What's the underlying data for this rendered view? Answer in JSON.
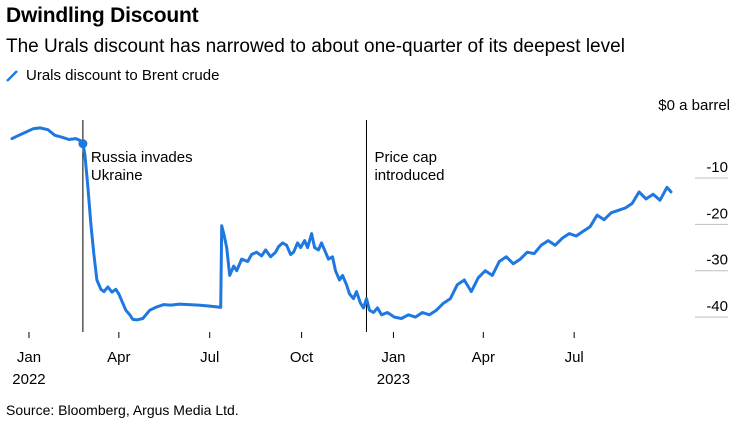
{
  "header": {
    "title": "Dwindling Discount",
    "subtitle": "The Urals discount has narrowed to about one-quarter of its deepest level"
  },
  "legend": {
    "label": "Urals discount to Brent crude",
    "icon": "line-icon"
  },
  "source": "Source: Bloomberg, Argus Media Ltd.",
  "colors": {
    "series": "#1f78e0",
    "axis": "#000000",
    "grid": "#bfbfbf"
  },
  "chart_data": {
    "type": "line",
    "title": "Dwindling Discount",
    "subtitle": "The Urals discount has narrowed to about one-quarter of its deepest level",
    "xlabel": "",
    "ylabel": "$0 a barrel",
    "ylim": [
      -44.5,
      2.5
    ],
    "xlim": [
      "2021-12-15",
      "2023-10-25"
    ],
    "yticks": [
      -10,
      -20,
      -30,
      -40
    ],
    "ytick_labels": [
      "-10",
      "-20",
      "-30",
      "-40"
    ],
    "y_axis_title": "$0 a barrel",
    "x_ticks": [
      {
        "date": "2022-01-01",
        "label": "Jan",
        "year": "2022"
      },
      {
        "date": "2022-04-01",
        "label": "Apr"
      },
      {
        "date": "2022-07-01",
        "label": "Jul"
      },
      {
        "date": "2022-10-01",
        "label": "Oct"
      },
      {
        "date": "2023-01-01",
        "label": "Jan",
        "year": "2023"
      },
      {
        "date": "2023-04-01",
        "label": "Apr"
      },
      {
        "date": "2023-07-01",
        "label": "Jul"
      }
    ],
    "annotations": [
      {
        "date": "2022-02-24",
        "text": [
          "Russia invades",
          "Ukraine"
        ],
        "marker_value": -2.6
      },
      {
        "date": "2022-12-05",
        "text": [
          "Price cap",
          "introduced"
        ]
      }
    ],
    "series": [
      {
        "name": "Urals discount to Brent crude",
        "x": [
          "2021-12-15",
          "2021-12-20",
          "2021-12-28",
          "2022-01-05",
          "2022-01-12",
          "2022-01-20",
          "2022-01-27",
          "2022-02-03",
          "2022-02-10",
          "2022-02-17",
          "2022-02-22",
          "2022-02-24",
          "2022-02-26",
          "2022-03-01",
          "2022-03-04",
          "2022-03-07",
          "2022-03-10",
          "2022-03-14",
          "2022-03-17",
          "2022-03-21",
          "2022-03-25",
          "2022-03-29",
          "2022-04-01",
          "2022-04-05",
          "2022-04-08",
          "2022-04-12",
          "2022-04-15",
          "2022-04-19",
          "2022-04-25",
          "2022-05-02",
          "2022-05-09",
          "2022-05-16",
          "2022-05-23",
          "2022-06-01",
          "2022-06-10",
          "2022-06-20",
          "2022-06-30",
          "2022-07-08",
          "2022-07-12",
          "2022-07-13",
          "2022-07-15",
          "2022-07-18",
          "2022-07-21",
          "2022-07-25",
          "2022-07-28",
          "2022-08-02",
          "2022-08-08",
          "2022-08-12",
          "2022-08-17",
          "2022-08-22",
          "2022-08-26",
          "2022-08-31",
          "2022-09-05",
          "2022-09-08",
          "2022-09-12",
          "2022-09-16",
          "2022-09-20",
          "2022-09-23",
          "2022-09-27",
          "2022-09-30",
          "2022-10-04",
          "2022-10-07",
          "2022-10-11",
          "2022-10-14",
          "2022-10-18",
          "2022-10-21",
          "2022-10-25",
          "2022-10-28",
          "2022-11-01",
          "2022-11-04",
          "2022-11-08",
          "2022-11-11",
          "2022-11-15",
          "2022-11-18",
          "2022-11-22",
          "2022-11-25",
          "2022-11-29",
          "2022-12-02",
          "2022-12-05",
          "2022-12-08",
          "2022-12-12",
          "2022-12-16",
          "2022-12-20",
          "2022-12-26",
          "2023-01-02",
          "2023-01-09",
          "2023-01-16",
          "2023-01-23",
          "2023-01-30",
          "2023-02-06",
          "2023-02-13",
          "2023-02-20",
          "2023-02-27",
          "2023-03-06",
          "2023-03-13",
          "2023-03-20",
          "2023-03-27",
          "2023-04-03",
          "2023-04-10",
          "2023-04-17",
          "2023-04-24",
          "2023-05-01",
          "2023-05-08",
          "2023-05-15",
          "2023-05-22",
          "2023-05-29",
          "2023-06-05",
          "2023-06-12",
          "2023-06-19",
          "2023-06-26",
          "2023-07-03",
          "2023-07-10",
          "2023-07-17",
          "2023-07-24",
          "2023-07-31",
          "2023-08-07",
          "2023-08-14",
          "2023-08-21",
          "2023-08-28",
          "2023-09-04",
          "2023-09-11",
          "2023-09-18",
          "2023-09-25",
          "2023-10-02",
          "2023-10-06"
        ],
        "values": [
          -1.5,
          -1.0,
          -0.2,
          0.6,
          0.8,
          0.4,
          -0.8,
          -1.2,
          -1.7,
          -1.5,
          -2.0,
          -2.6,
          -5.0,
          -12.0,
          -20.0,
          -26.5,
          -32.0,
          -34.0,
          -34.5,
          -33.5,
          -34.6,
          -34.0,
          -35.0,
          -37.0,
          -38.5,
          -39.5,
          -40.5,
          -40.6,
          -40.3,
          -38.5,
          -37.8,
          -37.3,
          -37.4,
          -37.2,
          -37.3,
          -37.4,
          -37.6,
          -37.8,
          -37.9,
          -20.3,
          -22.0,
          -25.0,
          -31.0,
          -29.0,
          -30.0,
          -27.5,
          -28.0,
          -26.5,
          -26.0,
          -26.8,
          -25.5,
          -27.0,
          -26.0,
          -24.8,
          -24.0,
          -24.5,
          -26.5,
          -26.0,
          -24.0,
          -25.0,
          -23.5,
          -25.0,
          -22.0,
          -25.0,
          -25.5,
          -24.0,
          -26.0,
          -27.5,
          -27.0,
          -30.0,
          -32.0,
          -31.0,
          -33.0,
          -35.0,
          -36.0,
          -34.5,
          -37.0,
          -38.0,
          -36.0,
          -38.5,
          -39.0,
          -38.0,
          -39.5,
          -39.0,
          -40.0,
          -40.3,
          -39.5,
          -40.0,
          -39.0,
          -39.5,
          -38.5,
          -37.0,
          -36.0,
          -33.0,
          -32.0,
          -34.5,
          -31.5,
          -30.0,
          -31.0,
          -28.0,
          -27.0,
          -28.5,
          -27.5,
          -26.0,
          -26.3,
          -24.5,
          -23.5,
          -24.5,
          -23.0,
          -22.0,
          -22.5,
          -21.5,
          -20.5,
          -18.0,
          -19.0,
          -17.5,
          -17.0,
          -16.5,
          -15.5,
          -13.0,
          -14.5,
          -13.5,
          -14.8,
          -12.0,
          -13.0
        ]
      }
    ]
  }
}
